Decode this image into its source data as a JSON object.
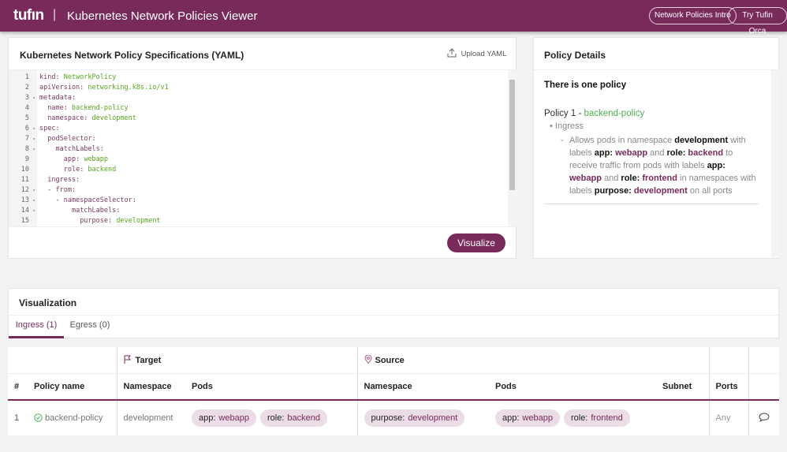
{
  "header": {
    "logo": "tufın",
    "separator": "|",
    "title": "Kubernetes Network Policies Viewer",
    "buttons": [
      "Network Policies Intro",
      "Try Tufin Orca"
    ]
  },
  "colors": {
    "brand": "#782a5b",
    "chip_bg": "#eadde5",
    "value_green": "#5aa51e"
  },
  "yaml_card": {
    "title": "Kubernetes Network Policy Specifications (YAML)",
    "upload_label": "Upload YAML",
    "visualize_label": "Visualize",
    "lines": [
      {
        "n": "1",
        "fold": false,
        "indent": "",
        "key": "kind:",
        "value": " NetworkPolicy"
      },
      {
        "n": "2",
        "fold": false,
        "indent": "",
        "key": "apiVersion:",
        "value": " networking.k8s.io/v1"
      },
      {
        "n": "3",
        "fold": true,
        "indent": "",
        "key": "metadata:",
        "value": ""
      },
      {
        "n": "4",
        "fold": false,
        "indent": "  ",
        "key": "name:",
        "value": " backend-policy"
      },
      {
        "n": "5",
        "fold": false,
        "indent": "  ",
        "key": "namespace:",
        "value": " development"
      },
      {
        "n": "6",
        "fold": true,
        "indent": "",
        "key": "spec:",
        "value": ""
      },
      {
        "n": "7",
        "fold": true,
        "indent": "  ",
        "key": "podSelector:",
        "value": ""
      },
      {
        "n": "8",
        "fold": true,
        "indent": "    ",
        "key": "matchLabels:",
        "value": ""
      },
      {
        "n": "9",
        "fold": false,
        "indent": "      ",
        "key": "app:",
        "value": " webapp"
      },
      {
        "n": "10",
        "fold": false,
        "indent": "      ",
        "key": "role:",
        "value": " backend"
      },
      {
        "n": "11",
        "fold": false,
        "indent": "  ",
        "key": "ingress:",
        "value": ""
      },
      {
        "n": "12",
        "fold": true,
        "indent": "  ",
        "key": "- from:",
        "value": ""
      },
      {
        "n": "13",
        "fold": true,
        "indent": "    ",
        "key": "- namespaceSelector:",
        "value": ""
      },
      {
        "n": "14",
        "fold": true,
        "indent": "        ",
        "key": "matchLabels:",
        "value": ""
      },
      {
        "n": "15",
        "fold": false,
        "indent": "          ",
        "key": "purpose:",
        "value": " development"
      }
    ]
  },
  "details": {
    "title": "Policy Details",
    "summary": "There is one policy",
    "policy_prefix": "Policy 1 - ",
    "policy_name": "backend-policy",
    "direction": "Ingress",
    "desc": [
      "Allows pods in namespace ",
      "development",
      " with labels ",
      "app:",
      " webapp",
      " and ",
      "role:",
      " backend",
      " to receive traffic from pods with labels ",
      "app:",
      " webapp",
      " and ",
      "role:",
      " frontend",
      " in namespaces with labels ",
      "purpose:",
      " development",
      " on all ports"
    ]
  },
  "visualization": {
    "title": "Visualization",
    "tabs": [
      {
        "label": "Ingress (1)",
        "active": true
      },
      {
        "label": "Egress (0)",
        "active": false
      }
    ]
  },
  "table": {
    "group_target": "Target",
    "group_source": "Source",
    "headers": [
      "#",
      "Policy name",
      "Namespace",
      "Pods",
      "Namespace",
      "Pods",
      "Subnet",
      "Ports"
    ],
    "rows": [
      {
        "num": "1",
        "policy": "backend-policy",
        "target_ns": "development",
        "target_pods": [
          {
            "k": "app:",
            "v": "webapp"
          },
          {
            "k": "role:",
            "v": "backend"
          }
        ],
        "source_ns": [
          {
            "k": "purpose:",
            "v": "development"
          }
        ],
        "source_pods": [
          {
            "k": "app:",
            "v": "webapp"
          },
          {
            "k": "role:",
            "v": "frontend"
          }
        ],
        "subnet": "",
        "ports": "Any"
      }
    ]
  }
}
